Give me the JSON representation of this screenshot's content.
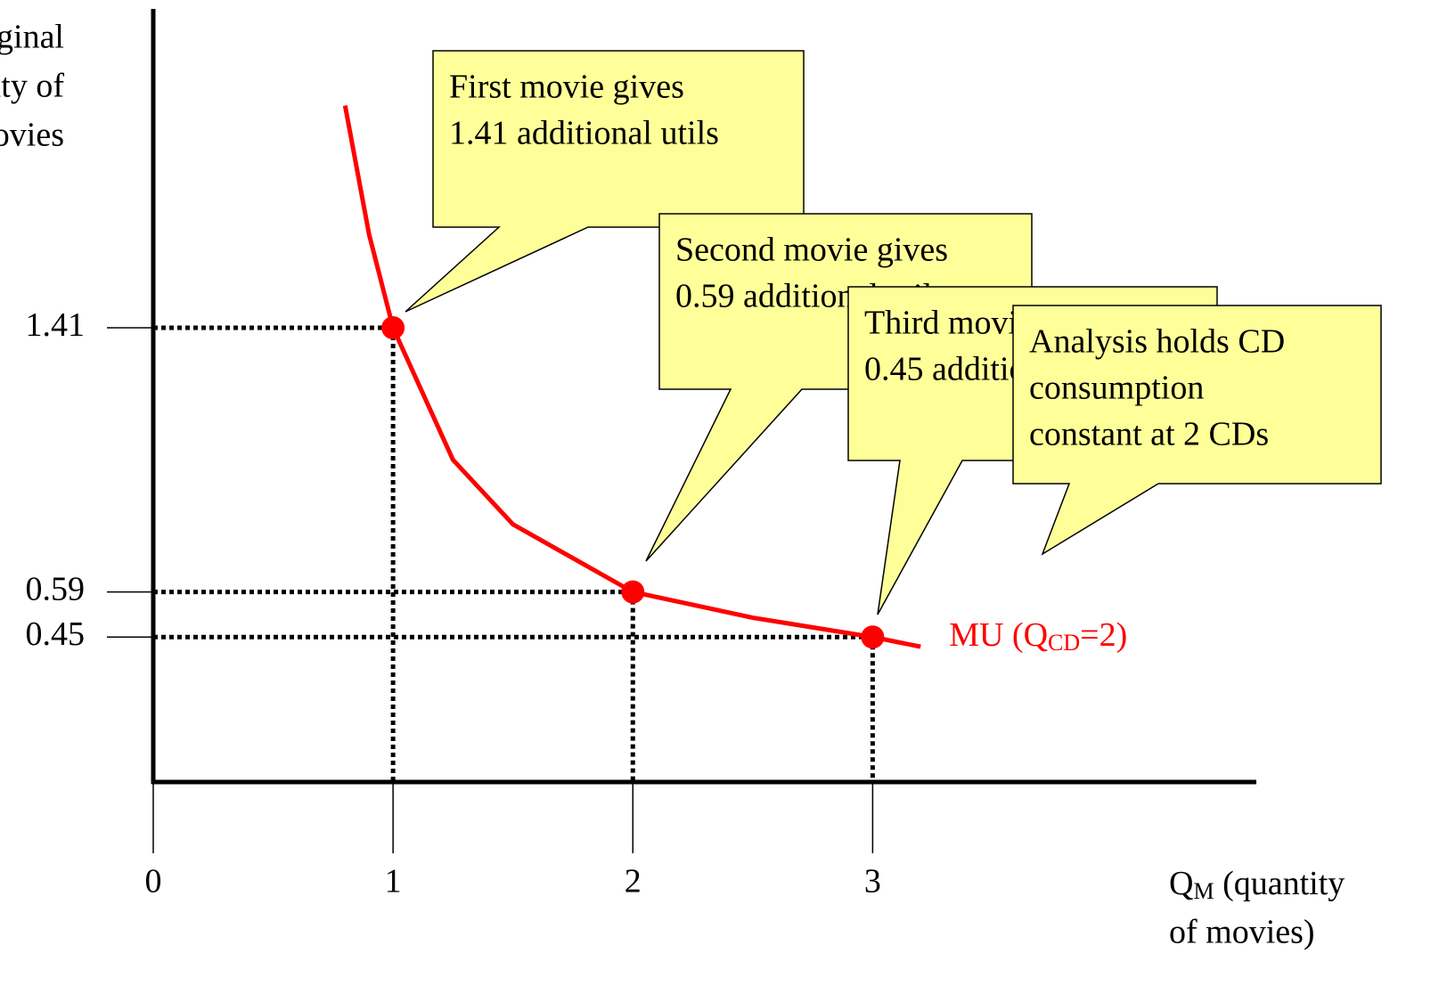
{
  "chart_data": {
    "type": "line",
    "y_label": [
      "Marginal",
      "utility of",
      "movies"
    ],
    "x_label": {
      "symbol": "Q",
      "sub": "M",
      "rest": " (quantity",
      "line2": "of movies)"
    },
    "xlim": [
      0,
      4.6
    ],
    "xticks": [
      0,
      1,
      2,
      3
    ],
    "ylim": [
      0,
      2.4
    ],
    "yticks": [
      1.41,
      0.59,
      0.45
    ],
    "series": [
      {
        "label": {
          "text": "MU (Q",
          "sub": "CD",
          "after": "=2)"
        },
        "color": "#ff0000",
        "x": [
          0.8,
          0.9,
          1,
          1.25,
          1.5,
          2,
          2.5,
          3,
          3.2
        ],
        "values": [
          2.1,
          1.7,
          1.41,
          1.0,
          0.8,
          0.59,
          0.51,
          0.45,
          0.42
        ]
      }
    ],
    "points": {
      "x": [
        1,
        2,
        3
      ],
      "values": [
        1.41,
        0.59,
        0.45
      ],
      "color": "#ff0000"
    },
    "annotations": [
      {
        "lines": [
          "First movie gives",
          "1.41 additional utils"
        ]
      },
      {
        "lines": [
          "Second movie gives",
          "0.59 additional utils"
        ]
      },
      {
        "lines": [
          "Third movie gives",
          "0.45 additional utils"
        ]
      },
      {
        "lines": [
          "Analysis holds CD",
          "consumption",
          "constant at 2 CDs"
        ]
      }
    ],
    "callout_color": "#ffff99"
  }
}
